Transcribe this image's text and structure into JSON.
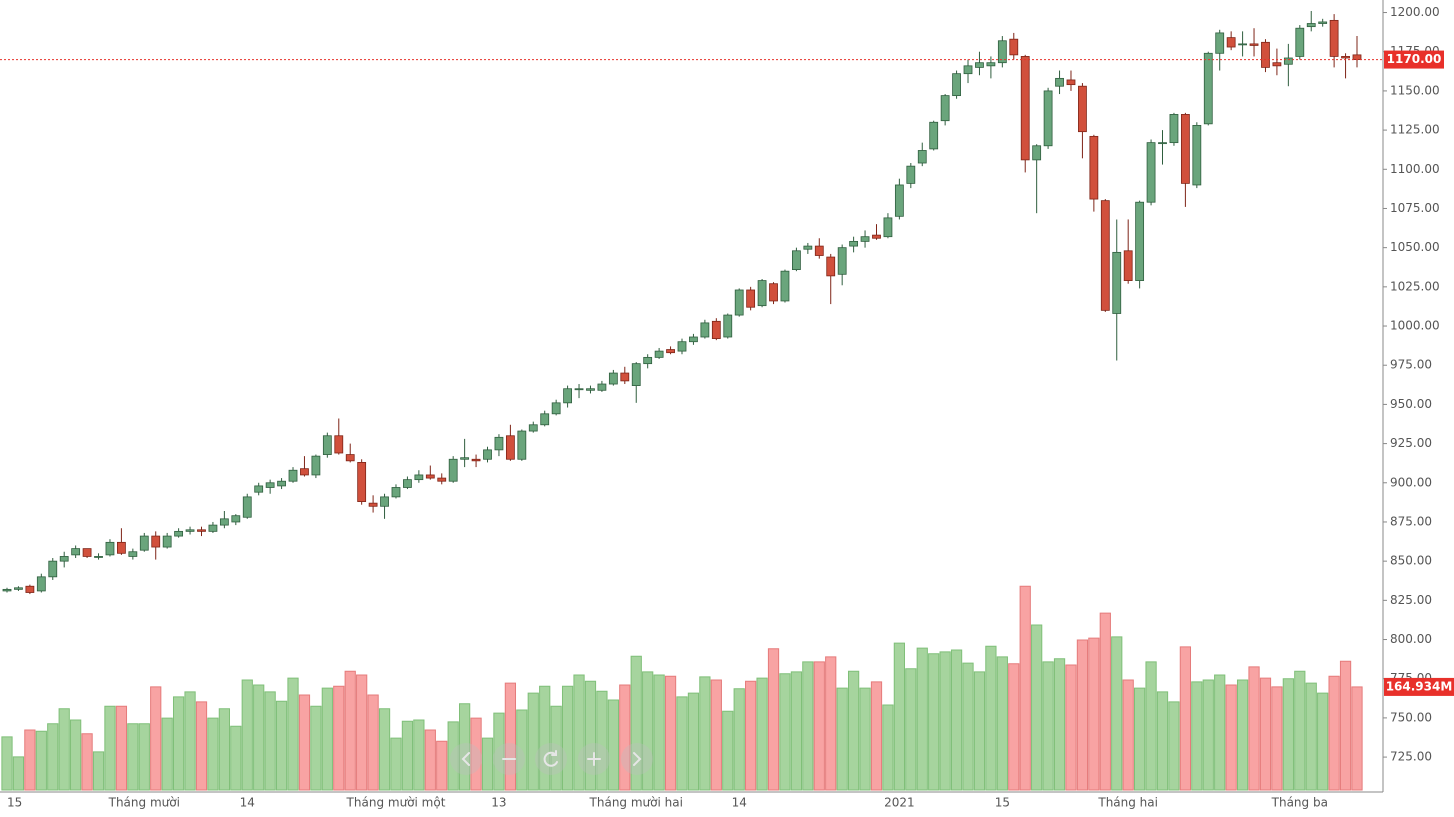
{
  "chart_data": {
    "type": "candlestick",
    "categories": [
      "15",
      null,
      null,
      null,
      null,
      null,
      null,
      null,
      null,
      null,
      null,
      null,
      "Tháng mười",
      null,
      null,
      null,
      null,
      null,
      null,
      null,
      null,
      "14",
      null,
      null,
      null,
      null,
      null,
      null,
      null,
      null,
      null,
      null,
      null,
      null,
      "Tháng mười một",
      null,
      null,
      null,
      null,
      null,
      null,
      null,
      null,
      "13",
      null,
      null,
      null,
      null,
      null,
      null,
      null,
      null,
      null,
      null,
      null,
      "Tháng mười hai",
      null,
      null,
      null,
      null,
      null,
      null,
      null,
      null,
      "14",
      null,
      null,
      null,
      null,
      null,
      null,
      null,
      null,
      null,
      null,
      null,
      null,
      null,
      "2021",
      null,
      null,
      null,
      null,
      null,
      null,
      null,
      null,
      "15",
      null,
      null,
      null,
      null,
      null,
      null,
      null,
      null,
      null,
      null,
      "Tháng hai",
      null,
      null,
      null,
      null,
      null,
      null,
      null,
      null,
      null,
      null,
      null,
      null,
      null,
      null,
      "Tháng ba",
      null,
      null,
      null,
      null,
      null
    ],
    "open": [
      831,
      832,
      834,
      831,
      840,
      850,
      854,
      858,
      853,
      854,
      862,
      853,
      857,
      866,
      859,
      866,
      869,
      870,
      869,
      873,
      875,
      878,
      894,
      897,
      898,
      901,
      909,
      905,
      918,
      930,
      918,
      913,
      887,
      885,
      891,
      897,
      902,
      905,
      903,
      901,
      915,
      915,
      915,
      921,
      930,
      915,
      933,
      937,
      944,
      951,
      960,
      959,
      959,
      963,
      970,
      962,
      976,
      980,
      985,
      984,
      990,
      993,
      1003,
      993,
      1007,
      1023,
      1013,
      1027,
      1016,
      1036,
      1049,
      1051,
      1044,
      1033,
      1051,
      1054,
      1058,
      1057,
      1070,
      1091,
      1104,
      1113,
      1131,
      1147,
      1161,
      1165,
      1166,
      1168,
      1183,
      1172,
      1106,
      1115,
      1153,
      1157,
      1153,
      1121,
      1080,
      1008,
      1048,
      1029,
      1079,
      1117,
      1117,
      1135,
      1090,
      1129,
      1174,
      1184,
      1180,
      1180,
      1181,
      1168,
      1167,
      1172,
      1191,
      1193,
      1195,
      1172,
      1173
    ],
    "high": [
      833,
      834,
      835,
      842,
      852,
      856,
      860,
      858,
      855,
      864,
      871,
      858,
      868,
      869,
      868,
      871,
      872,
      872,
      875,
      882,
      880,
      893,
      900,
      902,
      903,
      910,
      917,
      918,
      932,
      941,
      925,
      915,
      892,
      893,
      899,
      904,
      908,
      911,
      906,
      917,
      928,
      918,
      923,
      931,
      937,
      934,
      939,
      946,
      953,
      962,
      963,
      962,
      965,
      972,
      974,
      977,
      982,
      986,
      987,
      992,
      995,
      1004,
      1005,
      1008,
      1024,
      1025,
      1030,
      1028,
      1036,
      1050,
      1053,
      1056,
      1046,
      1052,
      1057,
      1061,
      1065,
      1072,
      1094,
      1104,
      1117,
      1131,
      1148,
      1163,
      1170,
      1175,
      1172,
      1185,
      1187,
      1173,
      1116,
      1152,
      1163,
      1163,
      1155,
      1122,
      1081,
      1068,
      1068,
      1080,
      1119,
      1125,
      1136,
      1136,
      1130,
      1175,
      1189,
      1188,
      1188,
      1190,
      1183,
      1177,
      1180,
      1192,
      1201,
      1196,
      1199,
      1174,
      1185
    ],
    "low": [
      830,
      831,
      829,
      830,
      838,
      846,
      852,
      852,
      851,
      853,
      854,
      851,
      856,
      851,
      858,
      865,
      867,
      866,
      868,
      871,
      873,
      877,
      892,
      893,
      896,
      900,
      904,
      903,
      916,
      918,
      913,
      886,
      881,
      877,
      890,
      896,
      900,
      902,
      899,
      900,
      910,
      910,
      913,
      917,
      914,
      914,
      932,
      936,
      943,
      948,
      954,
      957,
      958,
      962,
      963,
      951,
      973,
      979,
      982,
      982,
      988,
      992,
      991,
      992,
      1006,
      1010,
      1012,
      1014,
      1015,
      1035,
      1046,
      1043,
      1014,
      1026,
      1047,
      1050,
      1055,
      1056,
      1068,
      1088,
      1102,
      1112,
      1128,
      1145,
      1155,
      1160,
      1158,
      1165,
      1170,
      1098,
      1072,
      1113,
      1148,
      1150,
      1107,
      1073,
      1009,
      978,
      1027,
      1024,
      1077,
      1103,
      1115,
      1076,
      1088,
      1128,
      1163,
      1176,
      1172,
      1172,
      1162,
      1160,
      1153,
      1170,
      1188,
      1191,
      1165,
      1158,
      1165
    ],
    "close": [
      832,
      833,
      830,
      840,
      850,
      853,
      858,
      853,
      853,
      862,
      855,
      856,
      866,
      859,
      866,
      869,
      870,
      869,
      873,
      877,
      879,
      891,
      898,
      900,
      901,
      908,
      905,
      917,
      930,
      919,
      914,
      888,
      885,
      891,
      897,
      902,
      905,
      903,
      901,
      915,
      916,
      914,
      921,
      929,
      915,
      933,
      937,
      944,
      951,
      960,
      960,
      960,
      963,
      970,
      965,
      976,
      980,
      984,
      983,
      990,
      993,
      1002,
      992,
      1007,
      1023,
      1012,
      1029,
      1016,
      1035,
      1048,
      1051,
      1045,
      1032,
      1050,
      1054,
      1057,
      1056,
      1069,
      1090,
      1102,
      1112,
      1130,
      1147,
      1161,
      1166,
      1168,
      1168,
      1182,
      1173,
      1106,
      1115,
      1150,
      1158,
      1154,
      1124,
      1081,
      1010,
      1047,
      1029,
      1079,
      1117,
      1117,
      1135,
      1091,
      1128,
      1174,
      1187,
      1178,
      1180,
      1179,
      1165,
      1166,
      1171,
      1190,
      1193,
      1194,
      1172,
      1171,
      1170
    ],
    "volume": [
      85,
      53,
      96,
      94,
      106,
      130,
      112,
      90,
      61,
      134,
      134,
      106,
      106,
      165,
      115,
      149,
      157,
      141,
      115,
      130,
      102,
      176,
      168,
      157,
      142,
      179,
      152,
      134,
      163,
      166,
      190,
      184,
      152,
      130,
      83,
      110,
      112,
      96,
      78,
      109,
      138,
      115,
      83,
      123,
      171,
      128,
      155,
      166,
      134,
      166,
      184,
      174,
      158,
      144,
      168,
      214,
      189,
      184,
      182,
      149,
      155,
      181,
      176,
      126,
      162,
      174,
      179,
      226,
      186,
      189,
      205,
      205,
      213,
      163,
      190,
      163,
      173,
      136,
      235,
      194,
      227,
      218,
      221,
      224,
      203,
      189,
      230,
      213,
      202,
      326,
      264,
      205,
      210,
      200,
      240,
      243,
      283,
      245,
      176,
      163,
      205,
      157,
      141,
      229,
      173,
      176,
      184,
      168,
      176,
      197,
      179,
      165,
      178,
      190,
      171,
      155,
      182,
      206,
      164.934
    ],
    "up_color": "#6aa57c",
    "up_border": "#2f5e3e",
    "down_color": "#d1503c",
    "down_border": "#7e2417",
    "volume_up_color": "#a6d49e",
    "volume_up_border": "#7fbf78",
    "volume_down_color": "#f8a3a3",
    "volume_down_border": "#e57b7b",
    "ylim": [
      704,
      1208
    ],
    "yticks": [
      {
        "value": 725,
        "label": "725.00"
      },
      {
        "value": 750,
        "label": "750.00"
      },
      {
        "value": 775,
        "label": "775.00"
      },
      {
        "value": 800,
        "label": "800.00"
      },
      {
        "value": 825,
        "label": "825.00"
      },
      {
        "value": 850,
        "label": "850.00"
      },
      {
        "value": 875,
        "label": "875.00"
      },
      {
        "value": 900,
        "label": "900.00"
      },
      {
        "value": 925,
        "label": "925.00"
      },
      {
        "value": 950,
        "label": "950.00"
      },
      {
        "value": 975,
        "label": "975.00"
      },
      {
        "value": 1000,
        "label": "1000.00"
      },
      {
        "value": 1025,
        "label": "1025.00"
      },
      {
        "value": 1050,
        "label": "1050.00"
      },
      {
        "value": 1075,
        "label": "1075.00"
      },
      {
        "value": 1100,
        "label": "1100.00"
      },
      {
        "value": 1125,
        "label": "1125.00"
      },
      {
        "value": 1150,
        "label": "1150.00"
      },
      {
        "value": 1175,
        "label": "1175.00"
      },
      {
        "value": 1200,
        "label": "1200.00"
      }
    ],
    "y2lim": [
      0,
      500
    ],
    "price_line": {
      "value": 1170,
      "label": "1170.00",
      "color": "#e8302a"
    },
    "volume_line": {
      "value": 164.934,
      "label": "164.934M",
      "color": "#e8302a"
    }
  }
}
